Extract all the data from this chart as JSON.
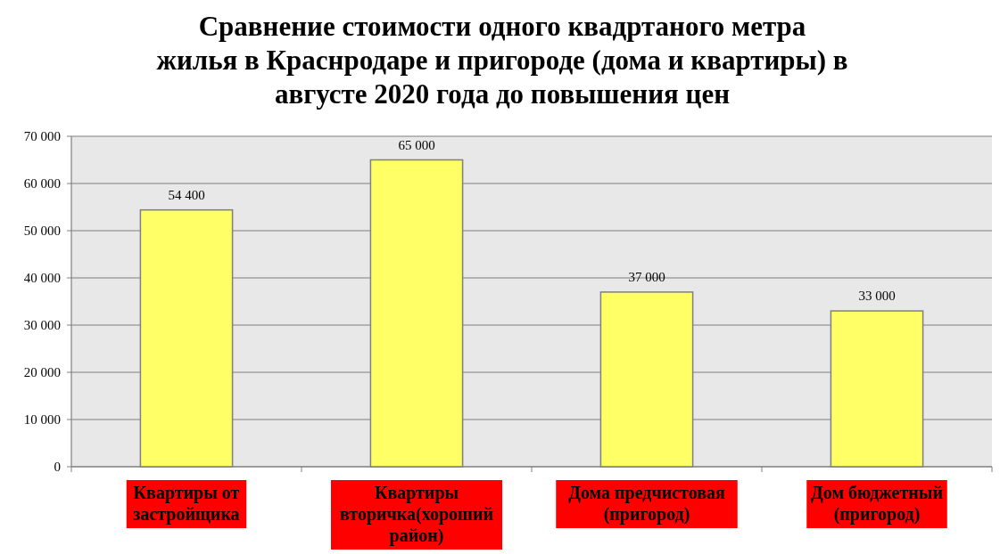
{
  "chart_data": {
    "type": "bar",
    "title": "Сравнение стоимости одного квадртаного метра\nжилья в Краснродаре и пригороде (дома и квартиры) в\nавгусте 2020 года до повышения цен",
    "categories": [
      "Квартиры от застройщика",
      "Квартиры вторичка(хороший район)",
      "Дома предчистовая (пригород)",
      "Дом бюджетный (пригород)"
    ],
    "values": [
      54400,
      65000,
      37000,
      33000
    ],
    "value_labels": [
      "54 400",
      "65 000",
      "37 000",
      "33 000"
    ],
    "color": "#ffff66",
    "ylim": [
      0,
      70000
    ],
    "yticks": [
      {
        "value": 0,
        "label": "0"
      },
      {
        "value": 10000,
        "label": "10 000"
      },
      {
        "value": 20000,
        "label": "20 000"
      },
      {
        "value": 30000,
        "label": "30 000"
      },
      {
        "value": 40000,
        "label": "40 000"
      },
      {
        "value": 50000,
        "label": "50 000"
      },
      {
        "value": 60000,
        "label": "60 000"
      },
      {
        "value": 70000,
        "label": "70 000"
      }
    ],
    "grid": "y"
  }
}
